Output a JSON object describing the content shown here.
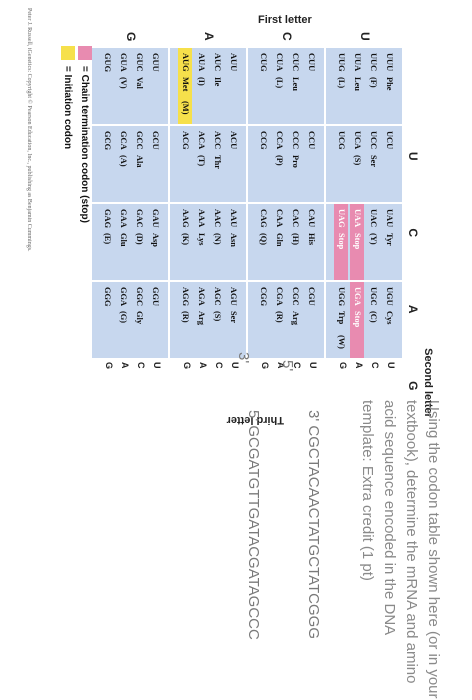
{
  "table": {
    "first_letter_title": "First letter",
    "second_letter_title": "Second letter",
    "third_letter_title": "Third letter",
    "second_letters": [
      "U",
      "C",
      "A",
      "G"
    ],
    "first_letters": [
      "U",
      "C",
      "A",
      "G"
    ],
    "third_letters": [
      "U",
      "C",
      "A",
      "G"
    ],
    "cells": [
      [
        {
          "lines": [
            [
              "UUU",
              "Phe",
              ""
            ],
            [
              "UUC",
              "(F)",
              ""
            ],
            [
              "UUA",
              "Leu",
              ""
            ],
            [
              "UUG",
              "(L)",
              ""
            ]
          ]
        },
        {
          "lines": [
            [
              "UCU",
              "",
              ""
            ],
            [
              "UCC",
              "Ser",
              ""
            ],
            [
              "UCA",
              "(S)",
              ""
            ],
            [
              "UCG",
              "",
              ""
            ]
          ]
        },
        {
          "lines": [
            [
              "UAU",
              "Tyr",
              ""
            ],
            [
              "UAC",
              "(Y)",
              ""
            ],
            [
              "UAA",
              "Stop",
              ""
            ],
            [
              "UAG",
              "Stop",
              ""
            ]
          ]
        },
        {
          "lines": [
            [
              "UGU",
              "Cys",
              ""
            ],
            [
              "UGC",
              "(C)",
              ""
            ],
            [
              "UGA",
              "Stop",
              ""
            ],
            [
              "UGG",
              "Trp",
              "(W)"
            ]
          ]
        }
      ],
      [
        {
          "lines": [
            [
              "CUU",
              "",
              ""
            ],
            [
              "CUC",
              "Leu",
              ""
            ],
            [
              "CUA",
              "(L)",
              ""
            ],
            [
              "CUG",
              "",
              ""
            ]
          ]
        },
        {
          "lines": [
            [
              "CCU",
              "",
              ""
            ],
            [
              "CCC",
              "Pro",
              ""
            ],
            [
              "CCA",
              "(P)",
              ""
            ],
            [
              "CCG",
              "",
              ""
            ]
          ]
        },
        {
          "lines": [
            [
              "CAU",
              "His",
              ""
            ],
            [
              "CAC",
              "(H)",
              ""
            ],
            [
              "CAA",
              "Gln",
              ""
            ],
            [
              "CAG",
              "(Q)",
              ""
            ]
          ]
        },
        {
          "lines": [
            [
              "CGU",
              "",
              ""
            ],
            [
              "CGC",
              "Arg",
              ""
            ],
            [
              "CGA",
              "(R)",
              ""
            ],
            [
              "CGG",
              "",
              ""
            ]
          ]
        }
      ],
      [
        {
          "lines": [
            [
              "AUU",
              "",
              ""
            ],
            [
              "AUC",
              "Ile",
              ""
            ],
            [
              "AUA",
              "(I)",
              ""
            ],
            [
              "AUG",
              "Met",
              "(M)"
            ]
          ]
        },
        {
          "lines": [
            [
              "ACU",
              "",
              ""
            ],
            [
              "ACC",
              "Thr",
              ""
            ],
            [
              "ACA",
              "(T)",
              ""
            ],
            [
              "ACG",
              "",
              ""
            ]
          ]
        },
        {
          "lines": [
            [
              "AAU",
              "Asn",
              ""
            ],
            [
              "AAC",
              "(N)",
              ""
            ],
            [
              "AAA",
              "Lys",
              ""
            ],
            [
              "AAG",
              "(K)",
              ""
            ]
          ]
        },
        {
          "lines": [
            [
              "AGU",
              "Ser",
              ""
            ],
            [
              "AGC",
              "(S)",
              ""
            ],
            [
              "AGA",
              "Arg",
              ""
            ],
            [
              "AGG",
              "(R)",
              ""
            ]
          ]
        }
      ],
      [
        {
          "lines": [
            [
              "GUU",
              "",
              ""
            ],
            [
              "GUC",
              "Val",
              ""
            ],
            [
              "GUA",
              "(V)",
              ""
            ],
            [
              "GUG",
              "",
              ""
            ]
          ]
        },
        {
          "lines": [
            [
              "GCU",
              "",
              ""
            ],
            [
              "GCC",
              "Ala",
              ""
            ],
            [
              "GCA",
              "(A)",
              ""
            ],
            [
              "GCG",
              "",
              ""
            ]
          ]
        },
        {
          "lines": [
            [
              "GAU",
              "Asp",
              ""
            ],
            [
              "GAC",
              "(D)",
              ""
            ],
            [
              "GAA",
              "Glu",
              ""
            ],
            [
              "GAG",
              "(E)",
              ""
            ]
          ]
        },
        {
          "lines": [
            [
              "GGU",
              "",
              ""
            ],
            [
              "GGC",
              "Gly",
              ""
            ],
            [
              "GGA",
              "(G)",
              ""
            ],
            [
              "GGG",
              "",
              ""
            ]
          ]
        }
      ]
    ],
    "stop_codons": [
      "UAA",
      "UAG",
      "UGA"
    ],
    "start_codons": [
      "AUG"
    ],
    "colors": {
      "cell": "#c7d7ee",
      "stop": "#e88bb0",
      "start": "#f6e04b"
    }
  },
  "legend": {
    "stop_label": "= Chain termination codon (stop)",
    "start_label": "= Initiation codon"
  },
  "credit": "Peter J. Russell, iGenetics: Copyright © Pearson Education, Inc., publishing as Benjamin Cummings.",
  "question": {
    "text": "Using the codon table shown here (or in your textbook), determine the mRNA and amino acid sequence encoded in the DNA template:",
    "extra": "Extra credit (1 pt)",
    "strand_top_prefix": "3'",
    "strand_top": "CGCTACAACTATGCTATCGGG",
    "strand_top_end": "5'",
    "strand_bottom_prefix": "5'",
    "strand_bottom": "GCGATGTTGATACGATAGCCC",
    "strand_bottom_end": "3'"
  }
}
